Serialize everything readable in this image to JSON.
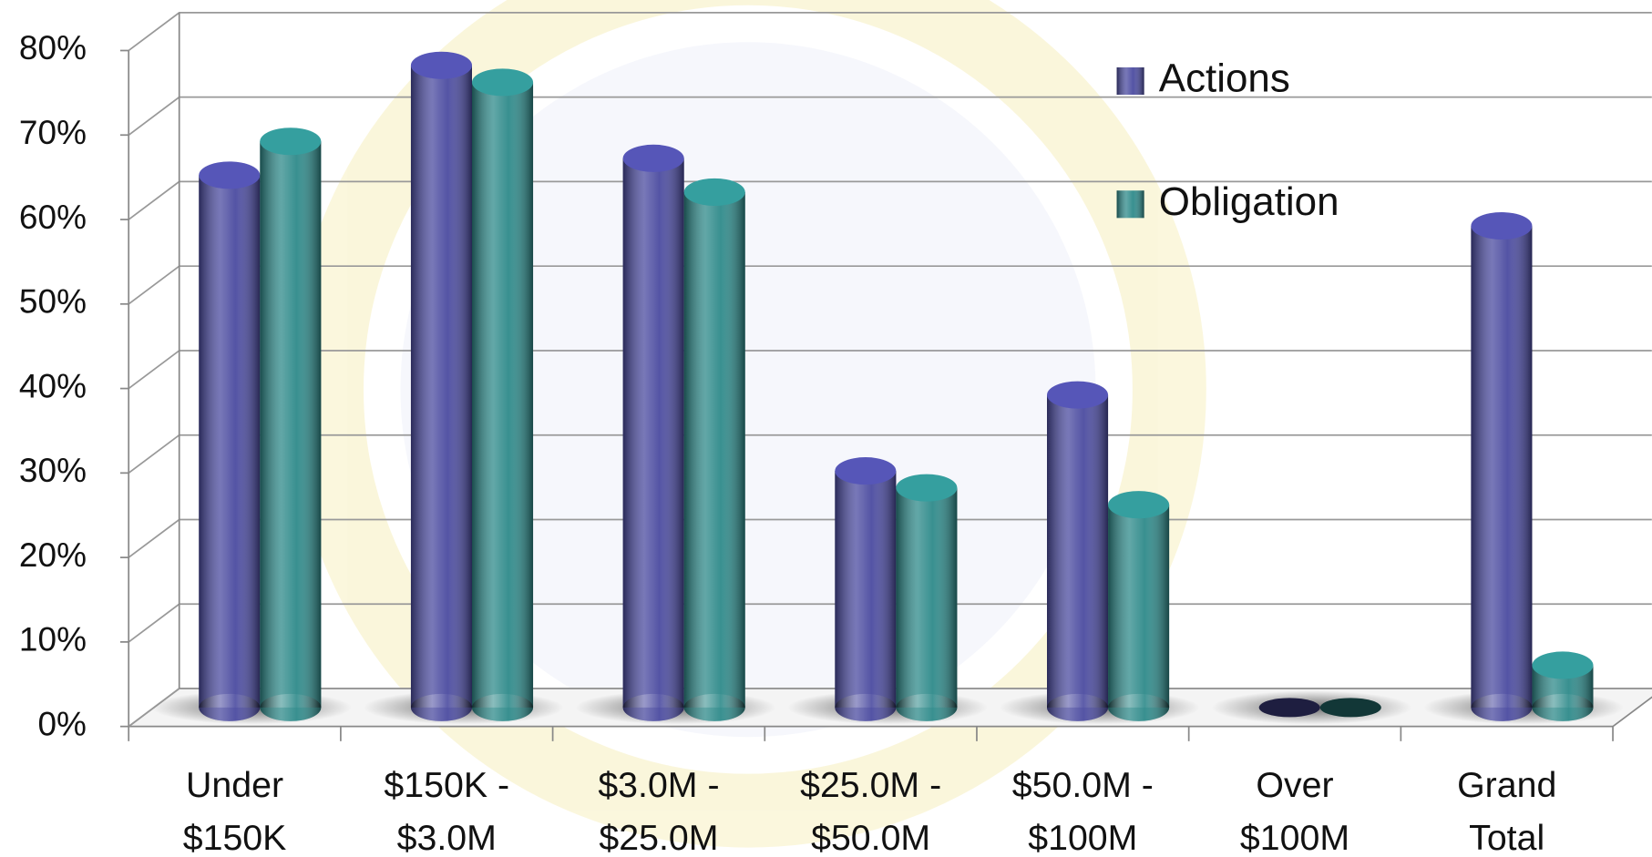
{
  "chart_data": {
    "type": "bar",
    "categories": [
      [
        "Under",
        "$150K"
      ],
      [
        "$150K -",
        "$3.0M"
      ],
      [
        "$3.0M -",
        "$25.0M"
      ],
      [
        "$25.0M -",
        "$50.0M"
      ],
      [
        "$50.0M -",
        "$100M"
      ],
      [
        "Over",
        "$100M"
      ],
      [
        "Grand",
        "Total"
      ]
    ],
    "series": [
      {
        "name": "Actions",
        "color": "#4b4ba0",
        "values": [
          63,
          76,
          65,
          28,
          37,
          0,
          57
        ]
      },
      {
        "name": "Obligation",
        "color": "#2e8a8a",
        "values": [
          67,
          74,
          61,
          26,
          24,
          0,
          5
        ]
      }
    ],
    "ylim": [
      0,
      80
    ],
    "yticks": [
      {
        "value": 0,
        "label": "0%"
      },
      {
        "value": 10,
        "label": "10%"
      },
      {
        "value": 20,
        "label": "20%"
      },
      {
        "value": 30,
        "label": "30%"
      },
      {
        "value": 40,
        "label": "40%"
      },
      {
        "value": 50,
        "label": "50%"
      },
      {
        "value": 60,
        "label": "60%"
      },
      {
        "value": 70,
        "label": "70%"
      },
      {
        "value": 80,
        "label": "80%"
      }
    ],
    "grid": true,
    "legend": "top-right"
  }
}
